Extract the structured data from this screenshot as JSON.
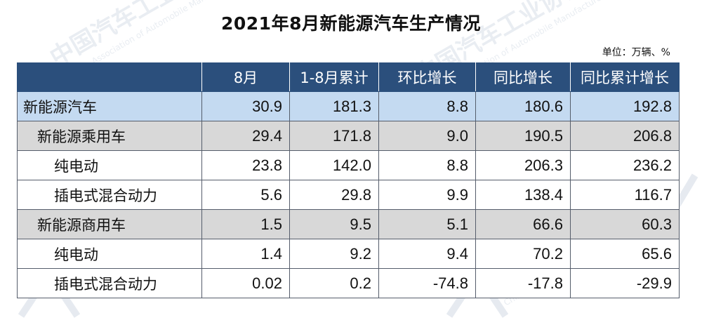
{
  "title": "2021年8月新能源汽车生产情况",
  "unit": "单位：万辆、%",
  "table": {
    "headers": [
      "",
      "8月",
      "1-8月累计",
      "环比增长",
      "同比增长",
      "同比累计增长"
    ],
    "rows": [
      {
        "level": 0,
        "name": "新能源汽车",
        "values": [
          "30.9",
          "181.3",
          "8.8",
          "180.6",
          "192.8"
        ]
      },
      {
        "level": 1,
        "name": "新能源乘用车",
        "values": [
          "29.4",
          "171.8",
          "9.0",
          "190.5",
          "206.8"
        ]
      },
      {
        "level": 2,
        "name": "纯电动",
        "values": [
          "23.8",
          "142.0",
          "8.8",
          "206.3",
          "236.2"
        ]
      },
      {
        "level": 2,
        "name": "插电式混合动力",
        "values": [
          "5.6",
          "29.8",
          "9.9",
          "138.4",
          "116.7"
        ]
      },
      {
        "level": 1,
        "name": "新能源商用车",
        "values": [
          "1.5",
          "9.5",
          "5.1",
          "66.6",
          "60.3"
        ]
      },
      {
        "level": 2,
        "name": "纯电动",
        "values": [
          "1.4",
          "9.2",
          "9.4",
          "70.2",
          "65.6"
        ]
      },
      {
        "level": 2,
        "name": "插电式混合动力",
        "values": [
          "0.02",
          "0.2",
          "-74.8",
          "-17.8",
          "-29.9"
        ]
      }
    ]
  },
  "watermark": {
    "text_cn": "中国汽车工业协会",
    "text_en": "China Association of Automobile Manufacturers"
  }
}
